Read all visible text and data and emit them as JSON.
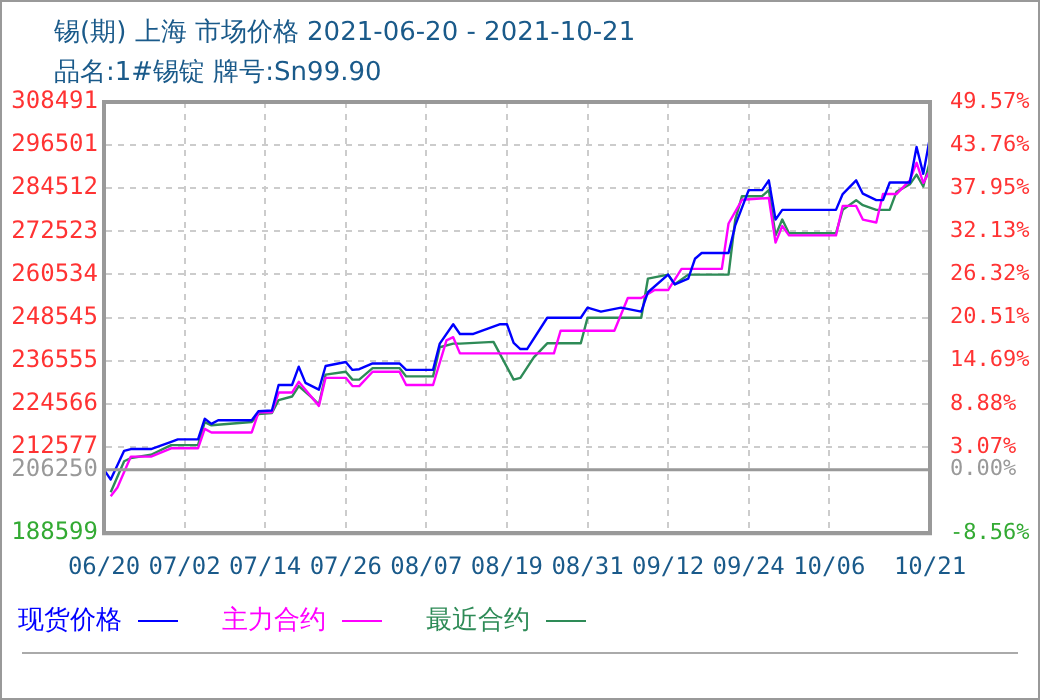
{
  "chart_data": {
    "type": "line",
    "title": "锡(期) 上海 市场价格 2021-06-20 - 2021-10-21",
    "subtitle": "品名:1#锡锭 牌号:Sn99.90",
    "xlim": [
      "2021-06-20",
      "2021-10-21"
    ],
    "xticks": [
      {
        "value": "2021-06-20",
        "label": "06/20"
      },
      {
        "value": "2021-07-02",
        "label": "07/02"
      },
      {
        "value": "2021-07-14",
        "label": "07/14"
      },
      {
        "value": "2021-07-26",
        "label": "07/26"
      },
      {
        "value": "2021-08-07",
        "label": "08/07"
      },
      {
        "value": "2021-08-19",
        "label": "08/19"
      },
      {
        "value": "2021-08-31",
        "label": "08/31"
      },
      {
        "value": "2021-09-12",
        "label": "09/12"
      },
      {
        "value": "2021-09-24",
        "label": "09/24"
      },
      {
        "value": "2021-10-06",
        "label": "10/06"
      },
      {
        "value": "2021-10-21",
        "label": "10/21"
      }
    ],
    "ylim": [
      188599,
      308491
    ],
    "yticks": [
      188599,
      206250,
      212577,
      224566,
      236555,
      248545,
      260534,
      272523,
      284512,
      296501,
      308491
    ],
    "y2lim": [
      -8.56,
      49.57
    ],
    "y2ticks": [
      {
        "value": -8.56,
        "label": "-8.56%"
      },
      {
        "value": 0,
        "label": "0.00%"
      },
      {
        "value": 3.07,
        "label": "3.07%"
      },
      {
        "value": 8.88,
        "label": "8.88%"
      },
      {
        "value": 14.69,
        "label": "14.69%"
      },
      {
        "value": 20.51,
        "label": "20.51%"
      },
      {
        "value": 26.32,
        "label": "26.32%"
      },
      {
        "value": 32.13,
        "label": "32.13%"
      },
      {
        "value": 37.95,
        "label": "37.95%"
      },
      {
        "value": 43.76,
        "label": "43.76%"
      },
      {
        "value": 49.57,
        "label": "49.57%"
      }
    ],
    "ref_lines": [
      {
        "axis": "y",
        "value": 206250,
        "color": "#999999"
      }
    ],
    "grid": true,
    "legend": "bottom",
    "marker": "none",
    "line_style": "solid",
    "series": [
      {
        "name": "现货价格",
        "color": "#0000ff",
        "x": [
          "2021-06-20",
          "2021-06-21",
          "2021-06-23",
          "2021-06-24",
          "2021-06-27",
          "2021-06-30",
          "2021-07-01",
          "2021-07-04",
          "2021-07-05",
          "2021-07-06",
          "2021-07-07",
          "2021-07-12",
          "2021-07-13",
          "2021-07-15",
          "2021-07-16",
          "2021-07-18",
          "2021-07-19",
          "2021-07-20",
          "2021-07-22",
          "2021-07-23",
          "2021-07-26",
          "2021-07-27",
          "2021-07-28",
          "2021-07-30",
          "2021-08-03",
          "2021-08-04",
          "2021-08-08",
          "2021-08-09",
          "2021-08-11",
          "2021-08-12",
          "2021-08-14",
          "2021-08-18",
          "2021-08-19",
          "2021-08-20",
          "2021-08-21",
          "2021-08-22",
          "2021-08-25",
          "2021-08-30",
          "2021-08-31",
          "2021-09-02",
          "2021-09-05",
          "2021-09-08",
          "2021-09-09",
          "2021-09-12",
          "2021-09-13",
          "2021-09-15",
          "2021-09-16",
          "2021-09-17",
          "2021-09-21",
          "2021-09-22",
          "2021-09-24",
          "2021-09-26",
          "2021-09-27",
          "2021-09-28",
          "2021-09-29",
          "2021-10-07",
          "2021-10-08",
          "2021-10-10",
          "2021-10-11",
          "2021-10-13",
          "2021-10-14",
          "2021-10-15",
          "2021-10-18",
          "2021-10-19",
          "2021-10-20",
          "2021-10-21"
        ],
        "values": [
          206250,
          203500,
          211500,
          212000,
          212000,
          214000,
          214700,
          214700,
          220400,
          219000,
          220000,
          220000,
          222500,
          222700,
          229800,
          229800,
          234900,
          230400,
          228500,
          235100,
          236200,
          234000,
          234200,
          235800,
          235800,
          234000,
          234000,
          241300,
          246700,
          244000,
          244000,
          246700,
          246700,
          241500,
          239800,
          239800,
          248500,
          248500,
          251300,
          250200,
          251300,
          250200,
          255600,
          260500,
          257800,
          259400,
          264900,
          266500,
          266500,
          274200,
          284000,
          284000,
          286700,
          275800,
          278500,
          278500,
          282900,
          286700,
          283000,
          281200,
          281200,
          286100,
          286100,
          296000,
          288500,
          298700
        ]
      },
      {
        "name": "主力合约",
        "color": "#ff00ff",
        "x": [
          "2021-06-21",
          "2021-06-22",
          "2021-06-24",
          "2021-06-27",
          "2021-06-30",
          "2021-07-04",
          "2021-07-05",
          "2021-07-06",
          "2021-07-12",
          "2021-07-13",
          "2021-07-15",
          "2021-07-16",
          "2021-07-18",
          "2021-07-19",
          "2021-07-22",
          "2021-07-23",
          "2021-07-26",
          "2021-07-27",
          "2021-07-28",
          "2021-07-30",
          "2021-08-03",
          "2021-08-04",
          "2021-08-08",
          "2021-08-10",
          "2021-08-11",
          "2021-08-12",
          "2021-08-18",
          "2021-08-19",
          "2021-08-26",
          "2021-08-27",
          "2021-09-03",
          "2021-09-04",
          "2021-09-06",
          "2021-09-08",
          "2021-09-10",
          "2021-09-12",
          "2021-09-14",
          "2021-09-20",
          "2021-09-21",
          "2021-09-23",
          "2021-09-27",
          "2021-09-28",
          "2021-09-29",
          "2021-09-30",
          "2021-10-07",
          "2021-10-08",
          "2021-10-10",
          "2021-10-11",
          "2021-10-13",
          "2021-10-14",
          "2021-10-16",
          "2021-10-18",
          "2021-10-19",
          "2021-10-20",
          "2021-10-21"
        ],
        "values": [
          198900,
          201300,
          209900,
          209900,
          212200,
          212200,
          217600,
          216600,
          216600,
          222200,
          222200,
          227700,
          227700,
          230700,
          224000,
          231800,
          231800,
          229500,
          229500,
          233500,
          233500,
          229800,
          229800,
          242200,
          243100,
          238600,
          238600,
          238600,
          238600,
          244900,
          244900,
          244900,
          254000,
          254000,
          256200,
          256200,
          262100,
          262100,
          274700,
          281300,
          281800,
          269400,
          274000,
          271400,
          271400,
          279600,
          279600,
          275800,
          275000,
          282900,
          282900,
          286700,
          291600,
          286000,
          289400
        ]
      },
      {
        "name": "最近合约",
        "color": "#2e8b57",
        "x": [
          "2021-06-21",
          "2021-06-23",
          "2021-06-24",
          "2021-06-27",
          "2021-06-30",
          "2021-07-04",
          "2021-07-05",
          "2021-07-06",
          "2021-07-12",
          "2021-07-13",
          "2021-07-15",
          "2021-07-16",
          "2021-07-18",
          "2021-07-19",
          "2021-07-21",
          "2021-07-22",
          "2021-07-23",
          "2021-07-26",
          "2021-07-27",
          "2021-07-28",
          "2021-07-30",
          "2021-08-03",
          "2021-08-04",
          "2021-08-08",
          "2021-08-09",
          "2021-08-11",
          "2021-08-12",
          "2021-08-17",
          "2021-08-20",
          "2021-08-21",
          "2021-08-23",
          "2021-08-25",
          "2021-08-30",
          "2021-08-31",
          "2021-09-08",
          "2021-09-09",
          "2021-09-12",
          "2021-09-13",
          "2021-09-15",
          "2021-09-21",
          "2021-09-22",
          "2021-09-23",
          "2021-09-26",
          "2021-09-27",
          "2021-09-28",
          "2021-09-29",
          "2021-09-30",
          "2021-10-07",
          "2021-10-08",
          "2021-10-10",
          "2021-10-11",
          "2021-10-13",
          "2021-10-15",
          "2021-10-16",
          "2021-10-18",
          "2021-10-19",
          "2021-10-20",
          "2021-10-21"
        ],
        "values": [
          200000,
          208600,
          209500,
          210400,
          213100,
          213100,
          219500,
          218600,
          219500,
          221700,
          222000,
          225600,
          226600,
          229500,
          226200,
          224400,
          232700,
          233500,
          231300,
          231300,
          234500,
          234500,
          232200,
          232200,
          240300,
          241300,
          241300,
          241800,
          231300,
          231800,
          237500,
          241400,
          241400,
          248500,
          248500,
          259400,
          260500,
          257800,
          260500,
          260500,
          275800,
          282300,
          282300,
          284000,
          271400,
          275800,
          272000,
          272000,
          278500,
          281200,
          279800,
          278500,
          278500,
          283500,
          285600,
          288300,
          285000,
          292100
        ]
      }
    ]
  }
}
